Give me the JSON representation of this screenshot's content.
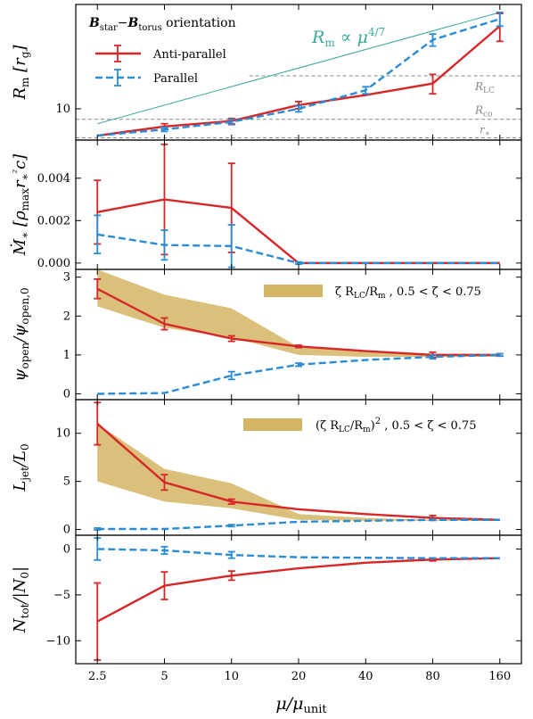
{
  "colors": {
    "antiparallel": "#d62728",
    "parallel": "#2b8cd6",
    "fill": "#d4b564",
    "green": "#3aa89a",
    "ref": "#7f8c8d"
  },
  "xaxis": {
    "label": "μ/μunit",
    "ticks": [
      2.5,
      5,
      10,
      20,
      40,
      80,
      160
    ],
    "tick_labels": [
      "2.5",
      "5",
      "10",
      "20",
      "40",
      "80",
      "160"
    ],
    "xlim": [
      2.0,
      200
    ]
  },
  "legend": {
    "title": "Bstar−Btorus orientation",
    "entries": [
      "Anti-parallel",
      "Parallel"
    ]
  },
  "chart_data": [
    {
      "type": "line",
      "panel": "Rm",
      "ylabel": "Rm [rg]",
      "yscale": "log",
      "ylim": [
        6.6,
        40
      ],
      "yticks": [
        10
      ],
      "ytick_labels": [
        "10"
      ],
      "x": [
        2.5,
        5,
        10,
        20,
        40,
        80,
        160
      ],
      "series": [
        {
          "name": "Anti-parallel",
          "values": [
            7.0,
            7.9,
            8.5,
            10.5,
            12.0,
            14.0,
            30.0
          ],
          "err": [
            0,
            0.3,
            0.3,
            0.5,
            0,
            1.8,
            5.5
          ]
        },
        {
          "name": "Parallel",
          "values": [
            7.0,
            7.6,
            8.4,
            10.0,
            12.8,
            25.0,
            33.0
          ],
          "err": [
            0,
            0.2,
            0.3,
            0.4,
            0.6,
            2.0,
            3.0
          ]
        }
      ],
      "reference_lines": [
        {
          "label": "RLC",
          "y": 15.5,
          "xstart": 12
        },
        {
          "label": "Rco",
          "y": 8.7,
          "xstart": 2.0
        },
        {
          "label": "r∗",
          "y": 6.8,
          "xstart": 2.0
        }
      ],
      "scaling_label": "Rm ∝ μ4/7",
      "scaling_line": {
        "x": [
          2.5,
          160
        ],
        "y": [
          8.2,
          36.0
        ]
      }
    },
    {
      "type": "line",
      "panel": "Mdot",
      "ylabel": "Ṁ∗ [ρmax r∗² c]",
      "ylim": [
        -0.0003,
        0.0058
      ],
      "yticks": [
        0.0,
        0.002,
        0.004
      ],
      "ytick_labels": [
        "0.000",
        "0.002",
        "0.004"
      ],
      "x": [
        2.5,
        5,
        10,
        20,
        40,
        80,
        160
      ],
      "series": [
        {
          "name": "Anti-parallel",
          "values": [
            0.0024,
            0.003,
            0.0026,
            0.0,
            0.0,
            0.0,
            0.0
          ],
          "err": [
            0.0015,
            0.0026,
            0.0021,
            0,
            0,
            0,
            0
          ]
        },
        {
          "name": "Parallel",
          "values": [
            0.00135,
            0.00085,
            0.0008,
            0.0,
            0.0,
            0.0,
            0.0
          ],
          "err": [
            0.0009,
            0.0007,
            0.001,
            5e-05,
            0,
            0,
            0
          ]
        }
      ]
    },
    {
      "type": "line",
      "panel": "psi",
      "ylabel": "ψopen/ψopen,0",
      "ylim": [
        -0.15,
        3.2
      ],
      "yticks": [
        0,
        1,
        2,
        3
      ],
      "ytick_labels": [
        "0",
        "1",
        "2",
        "3"
      ],
      "x": [
        2.5,
        5,
        10,
        20,
        40,
        80,
        160
      ],
      "series": [
        {
          "name": "Anti-parallel",
          "values": [
            2.7,
            1.8,
            1.42,
            1.22,
            1.1,
            1.0,
            1.0
          ],
          "err": [
            0.25,
            0.15,
            0.07,
            0.03,
            0,
            0.07,
            0.03
          ]
        },
        {
          "name": "Parallel",
          "values": [
            0.0,
            0.02,
            0.47,
            0.75,
            0.87,
            0.95,
            1.0
          ],
          "err": [
            0,
            0,
            0.1,
            0.04,
            0,
            0.05,
            0.03
          ]
        }
      ],
      "band": {
        "label": "ζ RLC/Rm , 0.5 < ζ < 0.75",
        "upper": [
          3.4,
          2.55,
          2.2,
          1.2,
          1.1,
          1.0,
          1.0
        ],
        "lower": [
          2.25,
          1.7,
          1.45,
          1.0,
          0.95,
          0.95,
          0.95
        ]
      }
    },
    {
      "type": "line",
      "panel": "Ljet",
      "ylabel": "Ljet/L0",
      "ylim": [
        -0.6,
        13.5
      ],
      "yticks": [
        0,
        5,
        10
      ],
      "ytick_labels": [
        "0",
        "5",
        "10"
      ],
      "x": [
        2.5,
        5,
        10,
        20,
        40,
        80,
        160
      ],
      "series": [
        {
          "name": "Anti-parallel",
          "values": [
            11.0,
            4.9,
            2.9,
            2.1,
            1.6,
            1.2,
            1.0
          ],
          "err": [
            2.2,
            0.8,
            0.25,
            0,
            0,
            0.25,
            0
          ]
        },
        {
          "name": "Parallel",
          "values": [
            0.05,
            0.05,
            0.4,
            0.8,
            0.9,
            1.0,
            1.0
          ],
          "err": [
            0.1,
            0,
            0.1,
            0,
            0,
            0.05,
            0
          ]
        }
      ],
      "band": {
        "label": "(ζ RLC/Rm)² , 0.5 < ζ < 0.75",
        "upper": [
          11.0,
          6.3,
          4.8,
          1.6,
          1.2,
          1.0,
          1.0
        ],
        "lower": [
          5.0,
          2.9,
          2.2,
          1.0,
          0.9,
          0.9,
          0.9
        ]
      }
    },
    {
      "type": "line",
      "panel": "Ntot",
      "ylabel": "Ntot/|N0|",
      "ylim": [
        -12.5,
        1.5
      ],
      "yticks": [
        -10,
        -5,
        0
      ],
      "ytick_labels": [
        "−10",
        "−5",
        "0"
      ],
      "x": [
        2.5,
        5,
        10,
        20,
        40,
        80,
        160
      ],
      "series": [
        {
          "name": "Anti-parallel",
          "values": [
            -7.9,
            -4.0,
            -2.9,
            -2.1,
            -1.5,
            -1.15,
            -1.0
          ],
          "err": [
            4.2,
            1.5,
            0.5,
            0,
            0,
            0.15,
            0
          ]
        },
        {
          "name": "Parallel",
          "values": [
            0.0,
            -0.15,
            -0.65,
            -0.9,
            -0.95,
            -1.0,
            -1.0
          ],
          "err": [
            1.2,
            0.4,
            0.35,
            0,
            0,
            0,
            0
          ]
        }
      ]
    }
  ]
}
